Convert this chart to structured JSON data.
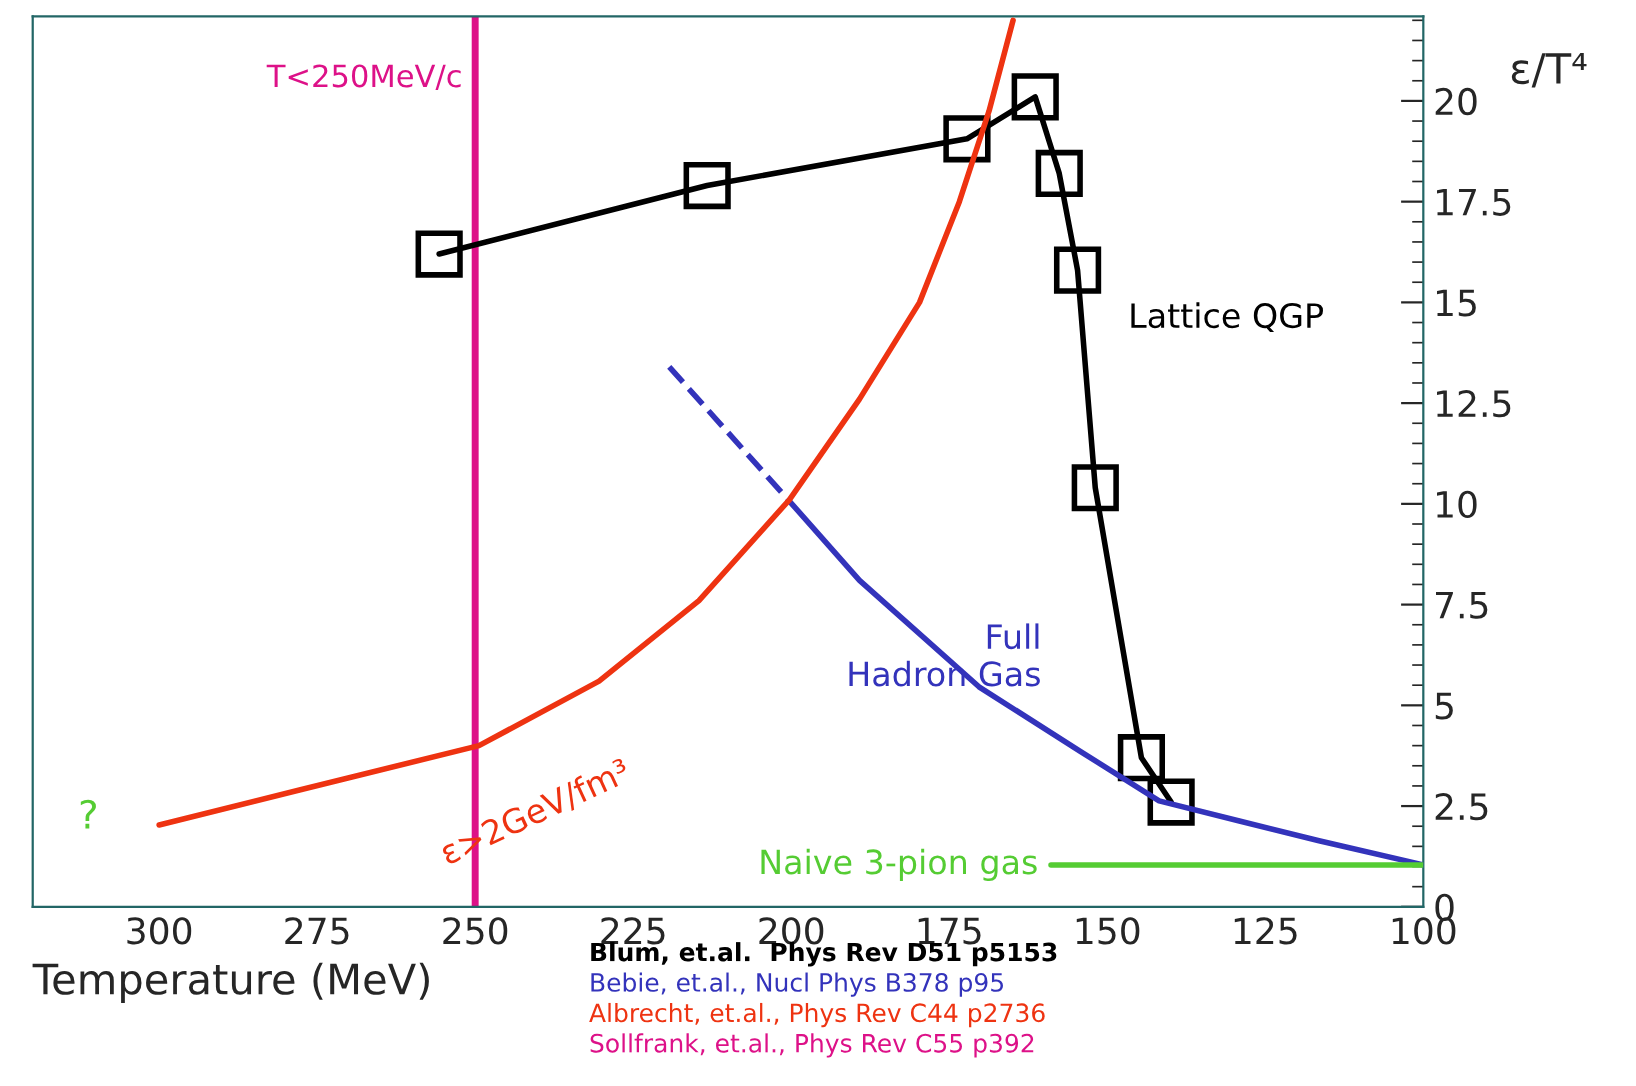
{
  "chart_data": {
    "type": "line",
    "xlabel": "Temperature (MeV)",
    "ylabel": "ε/T⁴",
    "xlim": [
      320,
      100
    ],
    "ylim": [
      0,
      22.1
    ],
    "xticks": [
      300,
      275,
      250,
      225,
      200,
      175,
      150,
      125,
      100
    ],
    "yticks": [
      0,
      2.5,
      5,
      7.5,
      10,
      12.5,
      15,
      17.5,
      20
    ],
    "grid": false,
    "legend": false,
    "series": [
      {
        "name": "Lattice QGP",
        "color": "#000000",
        "marker": "square",
        "x": [
          255.7,
          213.3,
          172.2,
          161.4,
          157.6,
          154.7,
          151.9,
          144.6,
          139.9
        ],
        "values": [
          16.2,
          17.9,
          19.06,
          20.1,
          18.2,
          15.8,
          10.4,
          3.7,
          2.6
        ]
      },
      {
        "color": "#3333bb",
        "line_style": "dashed",
        "x": [
          219.3,
          200.3
        ],
        "values": [
          13.4,
          10.07
        ]
      },
      {
        "name": "Full\nHadron Gas",
        "color": "#3333bb",
        "x": [
          200.3,
          189.2,
          170.3,
          154.4,
          141.8,
          129.1,
          116.5,
          100
        ],
        "values": [
          10.07,
          8.1,
          5.46,
          3.87,
          2.63,
          2.13,
          1.64,
          1.04
        ]
      },
      {
        "name": "Naive 3-pion gas",
        "color": "#55cc33",
        "x": [
          158.9,
          100
        ],
        "values": [
          1.04,
          1.04
        ]
      },
      {
        "name": "ε>2GeV/fm³",
        "color": "#ee3311",
        "x": [
          300,
          277.8,
          249.4,
          230.4,
          214.6,
          200.3,
          189.2,
          179.7,
          173.4,
          168.7,
          164.9
        ],
        "values": [
          2.03,
          2.9,
          4.0,
          5.6,
          7.6,
          10.1,
          12.6,
          15.0,
          17.5,
          19.75,
          22.0
        ]
      }
    ],
    "ref_lines": [
      {
        "axis": "x",
        "value": 250,
        "label": "T<250MeV/c",
        "color": "#dd1188"
      }
    ],
    "annotations": [
      "?",
      "Blum, et.al.  Phys Rev D51 p5153",
      "Bebie, et.al., Nucl Phys B378 p95",
      "Albrecht, et.al., Phys Rev C44 p2736",
      "Sollfrank, et.al., Phys Rev C55 p392"
    ]
  }
}
